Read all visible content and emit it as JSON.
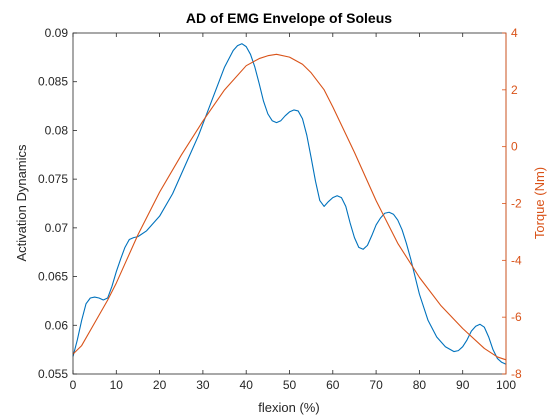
{
  "chart_data": {
    "type": "line",
    "title": "AD of EMG Envelope of Soleus",
    "xlabel": "flexion (%)",
    "ylabel_left": "Activation Dynamics",
    "ylabel_right": "Torque (Nm)",
    "xlim": [
      0,
      100
    ],
    "ylim_left": [
      0.055,
      0.09
    ],
    "ylim_right": [
      -8,
      4
    ],
    "x_ticks": [
      "0",
      "10",
      "20",
      "30",
      "40",
      "50",
      "60",
      "70",
      "80",
      "90",
      "100"
    ],
    "y_left_ticks": [
      "0.055",
      "0.06",
      "0.065",
      "0.07",
      "0.075",
      "0.08",
      "0.085",
      "0.09"
    ],
    "y_right_ticks": [
      "-8",
      "-6",
      "-4",
      "-2",
      "0",
      "2",
      "4"
    ],
    "grid": false,
    "colors": {
      "left": "#0072BD",
      "right": "#D95319",
      "axis": "#262626"
    },
    "series": [
      {
        "axis": "left",
        "color": "#0072BD",
        "x": [
          0,
          1,
          2,
          3,
          4,
          5,
          6,
          7,
          8,
          9,
          10,
          11,
          12,
          13,
          14,
          15,
          17,
          20,
          23,
          26,
          29,
          32,
          35,
          37,
          38,
          39,
          40,
          41,
          42,
          43,
          44,
          45,
          46,
          47,
          48,
          49,
          50,
          51,
          52,
          53,
          54,
          55,
          56,
          57,
          58,
          59,
          60,
          61,
          62,
          63,
          64,
          65,
          66,
          67,
          68,
          69,
          70,
          71,
          72,
          73,
          74,
          75,
          76,
          77,
          78,
          79,
          80,
          82,
          84,
          86,
          88,
          89,
          90,
          91,
          92,
          93,
          94,
          95,
          96,
          97,
          98,
          99,
          100
        ],
        "y": [
          0.0568,
          0.0585,
          0.0605,
          0.0622,
          0.0628,
          0.0629,
          0.0628,
          0.0626,
          0.0628,
          0.064,
          0.0655,
          0.0668,
          0.068,
          0.0688,
          0.069,
          0.0691,
          0.0697,
          0.0712,
          0.0735,
          0.0765,
          0.0795,
          0.083,
          0.0865,
          0.0882,
          0.0887,
          0.0889,
          0.0886,
          0.0878,
          0.0865,
          0.0848,
          0.083,
          0.0817,
          0.081,
          0.0808,
          0.081,
          0.0815,
          0.0819,
          0.0821,
          0.082,
          0.0812,
          0.0795,
          0.0772,
          0.0748,
          0.0728,
          0.0722,
          0.0727,
          0.0731,
          0.0733,
          0.0731,
          0.0722,
          0.0705,
          0.069,
          0.068,
          0.0678,
          0.0682,
          0.0692,
          0.0703,
          0.071,
          0.0715,
          0.0716,
          0.0714,
          0.0708,
          0.0698,
          0.0684,
          0.0668,
          0.065,
          0.0632,
          0.0605,
          0.0588,
          0.0578,
          0.0573,
          0.0574,
          0.0578,
          0.0585,
          0.0594,
          0.0599,
          0.0601,
          0.0598,
          0.0588,
          0.0575,
          0.0566,
          0.0562,
          0.056
        ]
      },
      {
        "axis": "right",
        "color": "#D95319",
        "x": [
          0,
          2,
          5,
          8,
          10,
          15,
          20,
          25,
          30,
          35,
          40,
          43,
          45,
          47,
          50,
          53,
          55,
          58,
          60,
          65,
          70,
          75,
          80,
          85,
          90,
          95,
          98,
          100
        ],
        "y": [
          -7.3,
          -7.0,
          -6.2,
          -5.4,
          -4.8,
          -3.1,
          -1.6,
          -0.3,
          0.9,
          2.0,
          2.85,
          3.1,
          3.2,
          3.25,
          3.15,
          2.9,
          2.6,
          2.0,
          1.4,
          -0.2,
          -1.9,
          -3.4,
          -4.6,
          -5.6,
          -6.4,
          -7.1,
          -7.4,
          -7.5
        ]
      }
    ]
  }
}
